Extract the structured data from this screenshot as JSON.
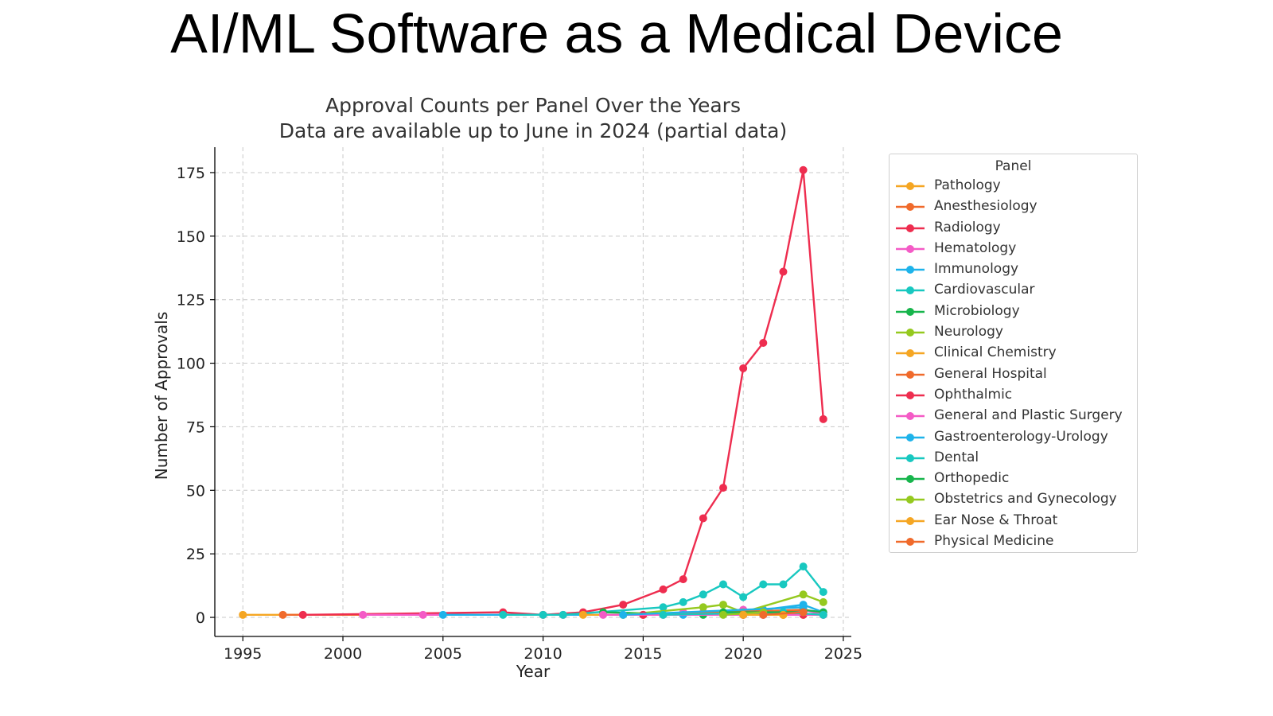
{
  "slide": {
    "title": "AI/ML Software as a Medical Device"
  },
  "chart_data": {
    "type": "line",
    "title": "Approval Counts per Panel Over the Years",
    "subtitle": "Data are available up to June in 2024 (partial data)",
    "xlabel": "Year",
    "ylabel": "Number of Approvals",
    "xlim": [
      1993.6,
      2025.4
    ],
    "ylim": [
      -7.5,
      185
    ],
    "xticks": [
      1995,
      2000,
      2005,
      2010,
      2015,
      2020,
      2025
    ],
    "yticks": [
      0,
      25,
      50,
      75,
      100,
      125,
      150,
      175
    ],
    "grid": true,
    "legend": {
      "title": "Panel",
      "placement": "right"
    },
    "series": [
      {
        "name": "Pathology",
        "color": "#f5a623",
        "points": [
          [
            1995,
            1
          ],
          [
            2022,
            1
          ]
        ]
      },
      {
        "name": "Anesthesiology",
        "color": "#f06a2b",
        "points": [
          [
            1997,
            1
          ],
          [
            2020,
            1
          ],
          [
            2023,
            2
          ]
        ]
      },
      {
        "name": "Radiology",
        "color": "#ee2d4f",
        "points": [
          [
            1998,
            1
          ],
          [
            2008,
            2
          ],
          [
            2010,
            1
          ],
          [
            2012,
            2
          ],
          [
            2014,
            5
          ],
          [
            2016,
            11
          ],
          [
            2017,
            15
          ],
          [
            2018,
            39
          ],
          [
            2019,
            51
          ],
          [
            2020,
            98
          ],
          [
            2021,
            108
          ],
          [
            2022,
            136
          ],
          [
            2023,
            176
          ],
          [
            2024,
            78
          ]
        ]
      },
      {
        "name": "Hematology",
        "color": "#f45bc6",
        "points": [
          [
            2001,
            1
          ],
          [
            2004,
            1
          ],
          [
            2011,
            1
          ],
          [
            2016,
            1
          ],
          [
            2017,
            2
          ],
          [
            2018,
            2
          ],
          [
            2020,
            3
          ],
          [
            2021,
            1
          ],
          [
            2022,
            2
          ],
          [
            2023,
            3
          ],
          [
            2024,
            1
          ]
        ]
      },
      {
        "name": "Immunology",
        "color": "#1eb3ea",
        "points": [
          [
            2005,
            1
          ],
          [
            2017,
            1
          ],
          [
            2021,
            3
          ],
          [
            2023,
            5
          ],
          [
            2024,
            2
          ]
        ]
      },
      {
        "name": "Cardiovascular",
        "color": "#18c8c0",
        "points": [
          [
            2008,
            1
          ],
          [
            2010,
            1
          ],
          [
            2011,
            1
          ],
          [
            2016,
            4
          ],
          [
            2017,
            6
          ],
          [
            2018,
            9
          ],
          [
            2019,
            13
          ],
          [
            2020,
            8
          ],
          [
            2021,
            13
          ],
          [
            2022,
            13
          ],
          [
            2023,
            20
          ],
          [
            2024,
            10
          ]
        ]
      },
      {
        "name": "Microbiology",
        "color": "#17b54c",
        "points": [
          [
            2013,
            2
          ],
          [
            2018,
            1
          ],
          [
            2023,
            3
          ],
          [
            2024,
            2
          ]
        ]
      },
      {
        "name": "Neurology",
        "color": "#95c91f",
        "points": [
          [
            2014,
            1
          ],
          [
            2018,
            4
          ],
          [
            2019,
            5
          ],
          [
            2020,
            2
          ],
          [
            2023,
            9
          ],
          [
            2024,
            6
          ]
        ]
      },
      {
        "name": "Clinical Chemistry",
        "color": "#f5a623",
        "points": [
          [
            2012,
            1
          ],
          [
            2022,
            1
          ],
          [
            2023,
            1
          ]
        ]
      },
      {
        "name": "General Hospital",
        "color": "#f06a2b",
        "points": [
          [
            2015,
            1
          ],
          [
            2023,
            3
          ]
        ]
      },
      {
        "name": "Ophthalmic",
        "color": "#ee2d4f",
        "points": [
          [
            2015,
            1
          ],
          [
            2020,
            1
          ],
          [
            2023,
            1
          ]
        ]
      },
      {
        "name": "General and Plastic Surgery",
        "color": "#f45bc6",
        "points": [
          [
            2013,
            1
          ],
          [
            2021,
            1
          ],
          [
            2024,
            1
          ]
        ]
      },
      {
        "name": "Gastroenterology-Urology",
        "color": "#1eb3ea",
        "points": [
          [
            2014,
            1
          ],
          [
            2023,
            4
          ]
        ]
      },
      {
        "name": "Dental",
        "color": "#18c8c0",
        "points": [
          [
            2016,
            1
          ],
          [
            2022,
            2
          ],
          [
            2024,
            1
          ]
        ]
      },
      {
        "name": "Orthopedic",
        "color": "#17b54c",
        "points": [
          [
            2019,
            2
          ],
          [
            2023,
            2
          ]
        ]
      },
      {
        "name": "Obstetrics and Gynecology",
        "color": "#95c91f",
        "points": [
          [
            2019,
            1
          ],
          [
            2021,
            2
          ]
        ]
      },
      {
        "name": "Ear Nose & Throat",
        "color": "#f5a623",
        "points": [
          [
            2020,
            1
          ],
          [
            2022,
            1
          ]
        ]
      },
      {
        "name": "Physical Medicine",
        "color": "#f06a2b",
        "points": [
          [
            2021,
            1
          ],
          [
            2023,
            2
          ]
        ]
      }
    ]
  }
}
